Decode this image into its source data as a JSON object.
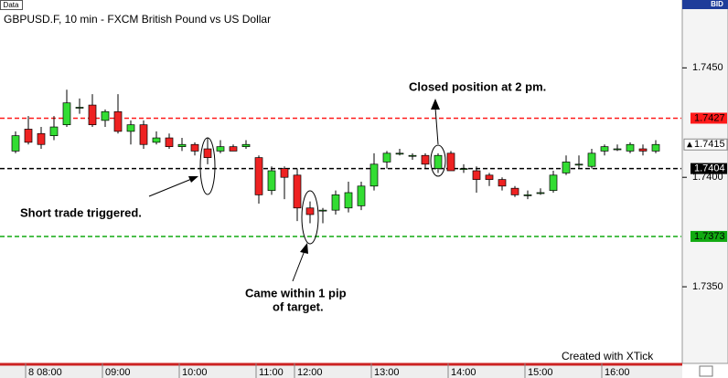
{
  "chart_data": {
    "type": "candlestick",
    "panel_label": "Data",
    "title": "GBPUSD.F, 10 min - FXCM British Pound vs US Dollar",
    "price_type": "BID",
    "watermark": "Created with XTick",
    "categories": [
      null,
      "8 08:00",
      null,
      null,
      null,
      null,
      null,
      "09:00",
      null,
      null,
      null,
      null,
      null,
      "10:00",
      null,
      null,
      null,
      null,
      null,
      "11:00",
      null,
      null,
      "12:00",
      null,
      null,
      null,
      null,
      null,
      "13:00",
      null,
      null,
      null,
      null,
      null,
      "14:00",
      null,
      null,
      null,
      null,
      null,
      "15:00",
      null,
      null,
      null,
      null,
      null,
      "16:00",
      null,
      null,
      null,
      null
    ],
    "open": [
      1.7412,
      1.7422,
      1.742,
      1.7419,
      1.7424,
      1.7432,
      1.7433,
      1.7426,
      1.743,
      1.7421,
      1.7424,
      1.7416,
      1.7418,
      1.7414,
      1.7415,
      1.7413,
      1.7412,
      1.7414,
      1.7414,
      1.7409,
      1.7394,
      1.7404,
      1.7401,
      1.7386,
      1.7385,
      1.7385,
      1.7386,
      1.7387,
      1.7396,
      1.7407,
      1.7411,
      1.741,
      1.741,
      1.7404,
      1.7411,
      1.7404,
      1.7403,
      1.7401,
      1.7399,
      1.7395,
      1.7392,
      1.7393,
      1.7394,
      1.7402,
      1.7406,
      1.7405,
      1.7412,
      1.7413,
      1.7412,
      1.7413,
      1.7412
    ],
    "high": [
      1.7421,
      1.7428,
      1.7423,
      1.7428,
      1.744,
      1.7436,
      1.7438,
      1.7431,
      1.7438,
      1.7426,
      1.7426,
      1.7421,
      1.742,
      1.7418,
      1.7416,
      1.7418,
      1.7417,
      1.7415,
      1.7417,
      1.741,
      1.7405,
      1.7405,
      1.7404,
      1.7389,
      1.7386,
      1.7394,
      1.7398,
      1.7398,
      1.7411,
      1.7412,
      1.7413,
      1.7411,
      1.7411,
      1.7411,
      1.7412,
      1.7406,
      1.7405,
      1.7402,
      1.74,
      1.7396,
      1.7394,
      1.7395,
      1.7403,
      1.741,
      1.741,
      1.7413,
      1.7415,
      1.7415,
      1.7416,
      1.7415,
      1.7417
    ],
    "low": [
      1.7411,
      1.7415,
      1.7413,
      1.7417,
      1.7423,
      1.7429,
      1.7423,
      1.7423,
      1.742,
      1.7415,
      1.7413,
      1.7415,
      1.7413,
      1.7412,
      1.741,
      1.7406,
      1.7411,
      1.7412,
      1.7413,
      1.7388,
      1.7392,
      1.739,
      1.738,
      1.7379,
      1.7379,
      1.7383,
      1.7384,
      1.7385,
      1.7394,
      1.7404,
      1.741,
      1.7408,
      1.7404,
      1.7402,
      1.7403,
      1.7402,
      1.7393,
      1.7396,
      1.7394,
      1.7391,
      1.739,
      1.7392,
      1.7393,
      1.7401,
      1.7404,
      1.7404,
      1.741,
      1.7412,
      1.7411,
      1.741,
      1.7411
    ],
    "close": [
      1.7419,
      1.7416,
      1.7415,
      1.7423,
      1.7434,
      1.7432,
      1.7424,
      1.743,
      1.7421,
      1.7424,
      1.7415,
      1.7418,
      1.7414,
      1.7415,
      1.7412,
      1.7409,
      1.7414,
      1.7412,
      1.7415,
      1.7392,
      1.7403,
      1.74,
      1.7386,
      1.7383,
      1.7385,
      1.7392,
      1.7393,
      1.7396,
      1.7406,
      1.7411,
      1.7411,
      1.741,
      1.7406,
      1.741,
      1.7403,
      1.7404,
      1.7399,
      1.7399,
      1.7396,
      1.7392,
      1.7392,
      1.7393,
      1.7401,
      1.7407,
      1.7406,
      1.7411,
      1.7414,
      1.7413,
      1.7415,
      1.7412,
      1.7415
    ],
    "up_color": "#33dd33",
    "down_color": "#ee2222",
    "ylim": [
      1.7315,
      1.7481
    ],
    "yticks": [
      {
        "value": 1.745,
        "label": "1.7450"
      },
      {
        "value": 1.74,
        "label": "1.7400"
      },
      {
        "value": 1.735,
        "label": "1.7350"
      }
    ],
    "levels": [
      {
        "value": 1.7427,
        "label": "1.7427",
        "color": "#ff1a1a",
        "label_color": "#000000"
      },
      {
        "value": 1.7404,
        "label": "1.7404",
        "color": "#000000",
        "label_color": "#ffffff"
      },
      {
        "value": 1.7373,
        "label": "1.7373",
        "color": "#11aa11",
        "label_color": "#000000"
      }
    ],
    "last_price": {
      "value": 1.7415,
      "label": "1.7415"
    },
    "annotations": [
      "Short trade triggered.",
      "Came within 1 pip",
      "of target.",
      "Closed position at 2 pm."
    ]
  }
}
